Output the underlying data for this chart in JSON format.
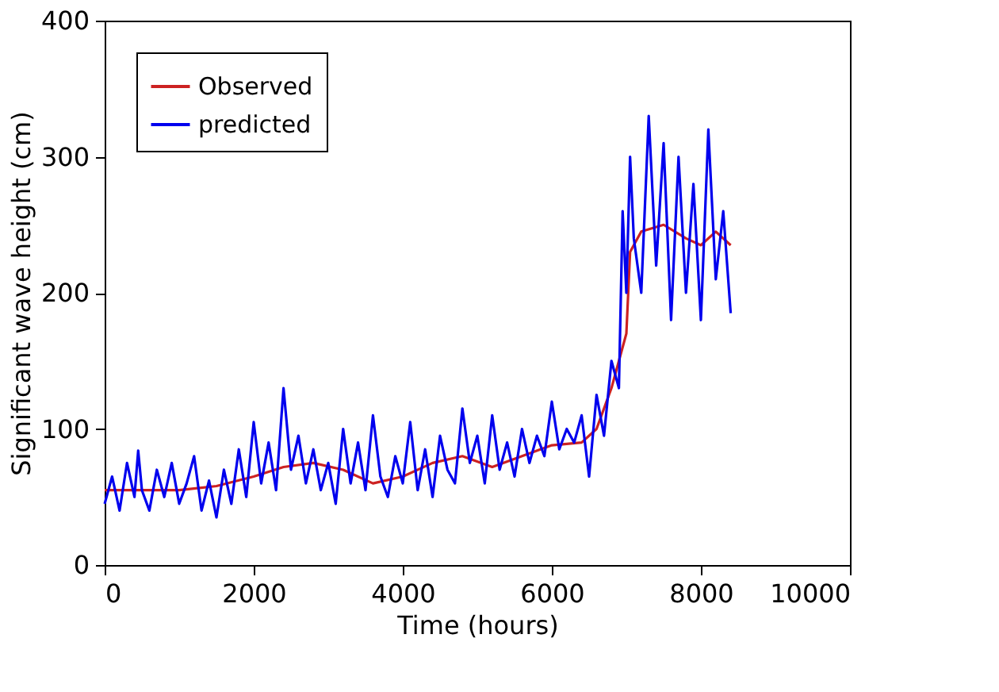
{
  "chart_data": {
    "type": "line",
    "xlabel": "Time (hours)",
    "ylabel": "Significant wave height (cm)",
    "xlim": [
      0,
      10000
    ],
    "ylim": [
      0,
      400
    ],
    "xticks": [
      0,
      2000,
      4000,
      6000,
      8000,
      10000
    ],
    "yticks": [
      0,
      100,
      200,
      300,
      400
    ],
    "grid": false,
    "legend": "top left",
    "series": [
      {
        "name": "Observed",
        "color": "#cc2222",
        "x": [
          0,
          500,
          1000,
          1500,
          2000,
          2400,
          2800,
          3200,
          3600,
          4000,
          4400,
          4800,
          5200,
          5600,
          6000,
          6400,
          6600,
          6800,
          6900,
          7000,
          7050,
          7200,
          7500,
          7800,
          8000,
          8200,
          8400
        ],
        "values": [
          55,
          55,
          55,
          58,
          65,
          72,
          75,
          70,
          60,
          65,
          75,
          80,
          72,
          80,
          88,
          90,
          100,
          130,
          150,
          170,
          230,
          245,
          250,
          240,
          235,
          245,
          235
        ]
      },
      {
        "name": "predicted",
        "color": "#0000ee",
        "x": [
          0,
          100,
          200,
          300,
          400,
          450,
          500,
          600,
          700,
          800,
          900,
          1000,
          1100,
          1200,
          1300,
          1400,
          1500,
          1600,
          1700,
          1800,
          1900,
          2000,
          2100,
          2200,
          2300,
          2400,
          2500,
          2600,
          2700,
          2800,
          2900,
          3000,
          3100,
          3200,
          3300,
          3400,
          3500,
          3600,
          3700,
          3800,
          3900,
          4000,
          4100,
          4200,
          4300,
          4400,
          4500,
          4600,
          4700,
          4800,
          4900,
          5000,
          5100,
          5200,
          5300,
          5400,
          5500,
          5600,
          5700,
          5800,
          5900,
          6000,
          6100,
          6200,
          6300,
          6400,
          6500,
          6600,
          6700,
          6800,
          6900,
          6950,
          7000,
          7050,
          7100,
          7200,
          7300,
          7400,
          7500,
          7600,
          7700,
          7800,
          7900,
          8000,
          8100,
          8200,
          8300,
          8400
        ],
        "values": [
          45,
          65,
          40,
          75,
          50,
          84,
          55,
          40,
          70,
          50,
          75,
          45,
          60,
          80,
          40,
          62,
          35,
          70,
          45,
          85,
          50,
          105,
          60,
          90,
          55,
          130,
          70,
          95,
          60,
          85,
          55,
          75,
          45,
          100,
          60,
          90,
          55,
          110,
          65,
          50,
          80,
          60,
          105,
          55,
          85,
          50,
          95,
          70,
          60,
          115,
          75,
          95,
          60,
          110,
          70,
          90,
          65,
          100,
          75,
          95,
          80,
          120,
          85,
          100,
          90,
          110,
          65,
          125,
          95,
          150,
          130,
          260,
          200,
          300,
          240,
          200,
          330,
          220,
          310,
          180,
          300,
          200,
          280,
          180,
          320,
          210,
          260,
          185
        ]
      }
    ]
  }
}
